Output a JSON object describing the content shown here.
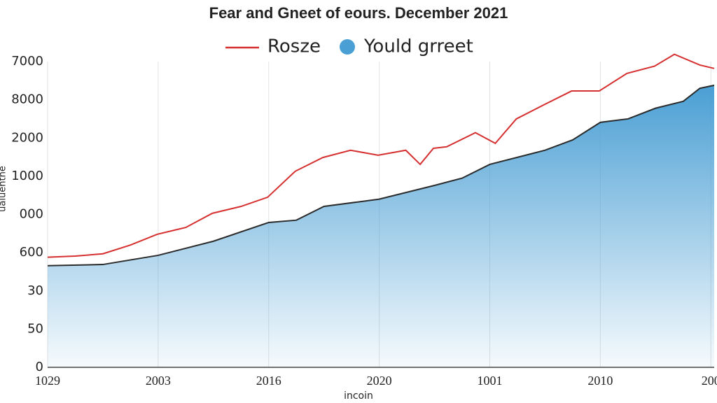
{
  "chart_data": {
    "type": "line",
    "title": "Fear and Gneet of eours. December 2021",
    "x_label": "incoin",
    "y_label": "ualuentne",
    "grid": "x",
    "xlim": [
      0,
      6.03
    ],
    "xticks": [
      {
        "value": 0,
        "label": "1029"
      },
      {
        "value": 1,
        "label": "2003"
      },
      {
        "value": 2,
        "label": "2016"
      },
      {
        "value": 3,
        "label": "2020"
      },
      {
        "value": 4,
        "label": "1001"
      },
      {
        "value": 5,
        "label": "2010"
      },
      {
        "value": 6,
        "label": "200"
      }
    ],
    "ylim": [
      0,
      8
    ],
    "yticks": [
      {
        "value": 0,
        "label": "0"
      },
      {
        "value": 1,
        "label": "50"
      },
      {
        "value": 2,
        "label": "30"
      },
      {
        "value": 3,
        "label": "600"
      },
      {
        "value": 4,
        "label": "000"
      },
      {
        "value": 5,
        "label": "1000"
      },
      {
        "value": 6,
        "label": "2000"
      },
      {
        "value": 7,
        "label": "8000"
      },
      {
        "value": 8,
        "label": "7000"
      }
    ],
    "series": [
      {
        "name": "Rosze",
        "color": "#d62f2f",
        "style": "line",
        "x": [
          0,
          0.25,
          0.5,
          0.75,
          0.99,
          1.25,
          1.49,
          1.75,
          1.99,
          2.24,
          2.49,
          2.74,
          2.99,
          3.24,
          3.37,
          3.49,
          3.61,
          3.87,
          4.05,
          4.24,
          4.49,
          4.74,
          4.99,
          5.24,
          5.49,
          5.67,
          5.9,
          6.03
        ],
        "values": [
          2.88,
          2.91,
          2.97,
          3.2,
          3.48,
          3.66,
          4.03,
          4.21,
          4.45,
          5.13,
          5.49,
          5.68,
          5.55,
          5.68,
          5.31,
          5.73,
          5.77,
          6.14,
          5.86,
          6.5,
          6.87,
          7.23,
          7.23,
          7.69,
          7.88,
          8.19,
          7.91,
          7.82
        ]
      },
      {
        "name": "Yould grreet",
        "color": "#4a9fd4",
        "style": "area",
        "x": [
          0,
          0.5,
          1,
          1.5,
          2,
          2.25,
          2.5,
          3,
          3.5,
          3.75,
          4,
          4.5,
          4.75,
          5,
          5.25,
          5.5,
          5.75,
          5.9,
          6.03
        ],
        "values": [
          2.66,
          2.69,
          2.93,
          3.3,
          3.79,
          3.85,
          4.21,
          4.4,
          4.76,
          4.95,
          5.31,
          5.68,
          5.95,
          6.41,
          6.5,
          6.78,
          6.96,
          7.3,
          7.38
        ]
      }
    ]
  }
}
